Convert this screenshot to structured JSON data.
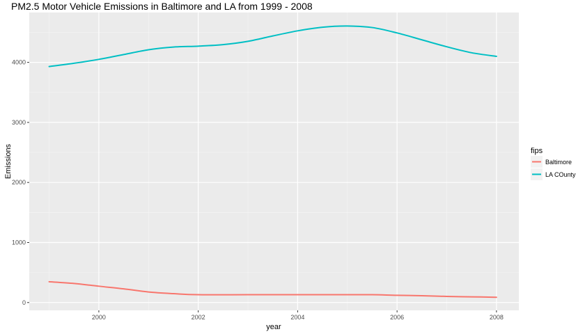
{
  "chart_data": {
    "type": "line",
    "title": "PM2.5 Motor Vehicle Emissions in Baltimore and LA from 1999 - 2008",
    "xlabel": "year",
    "ylabel": "Emissions",
    "xlim": [
      1998.6,
      2008.45
    ],
    "ylim": [
      -130,
      4830
    ],
    "x_ticks": [
      2000,
      2002,
      2004,
      2006,
      2008
    ],
    "x_tick_labels": [
      "2000",
      "2002",
      "2004",
      "2006",
      "2008"
    ],
    "y_ticks": [
      0,
      1000,
      2000,
      3000,
      4000
    ],
    "y_tick_labels": [
      "0",
      "1000",
      "2000",
      "3000",
      "4000"
    ],
    "grid": true,
    "legend": {
      "title": "fips",
      "placement": "right",
      "entries": [
        "Baltimore",
        "LA COunty"
      ]
    },
    "series": [
      {
        "name": "Baltimore",
        "color": "#f8766d",
        "x": [
          1999,
          1999.5,
          2000,
          2000.5,
          2001,
          2001.5,
          2002,
          2003,
          2004,
          2005,
          2005.5,
          2006,
          2006.5,
          2007,
          2007.5,
          2008
        ],
        "y": [
          346,
          318,
          272,
          228,
          176,
          148,
          130,
          130,
          130,
          130,
          130,
          120,
          114,
          102,
          95,
          88
        ]
      },
      {
        "name": "LA COunty",
        "color": "#00bfc4",
        "x": [
          1999,
          1999.5,
          2000,
          2000.5,
          2001,
          2001.5,
          2002,
          2002.5,
          2003,
          2003.5,
          2004,
          2004.5,
          2005,
          2005.5,
          2006,
          2006.5,
          2007,
          2007.5,
          2008
        ],
        "y": [
          3930,
          3985,
          4050,
          4130,
          4210,
          4255,
          4270,
          4295,
          4350,
          4440,
          4525,
          4585,
          4605,
          4580,
          4490,
          4375,
          4260,
          4160,
          4100
        ]
      }
    ]
  }
}
